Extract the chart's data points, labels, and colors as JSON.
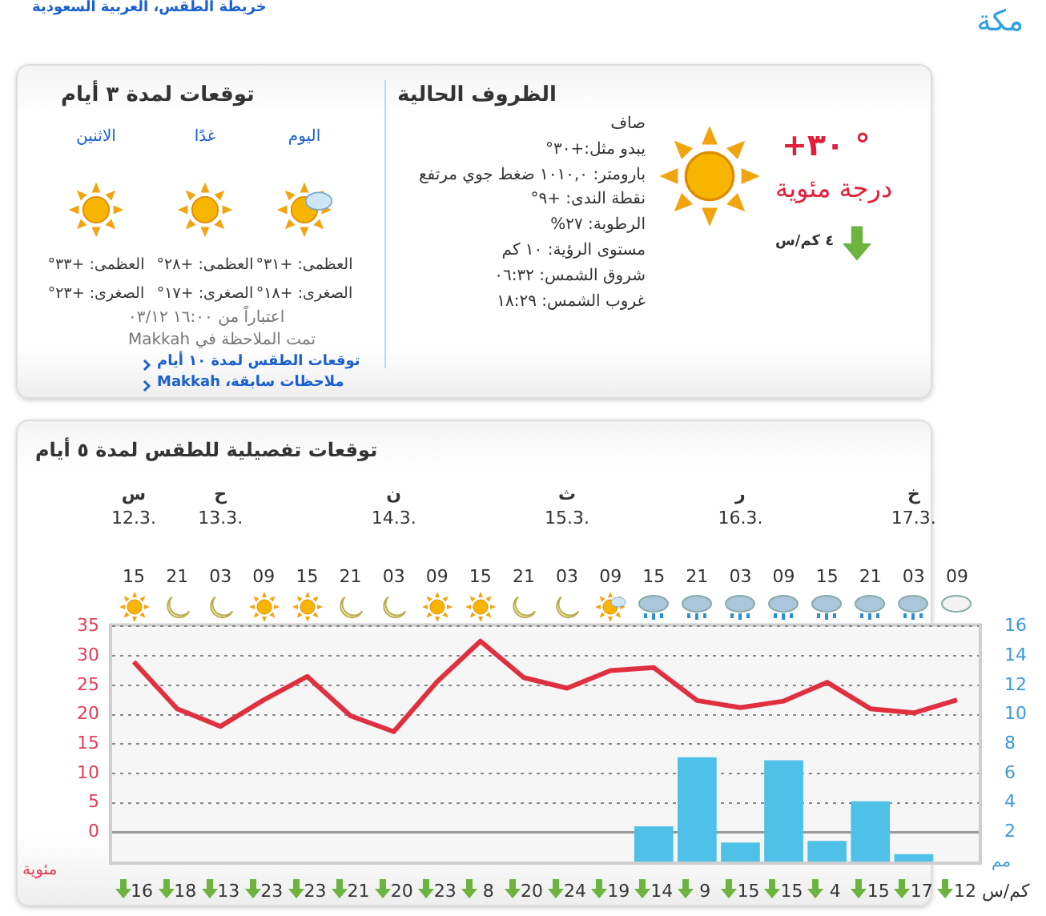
{
  "chart_data": [
    {
      "type": "other",
      "title": "الظروف الحالية",
      "annotations": [
        "مكة",
        "خريطة الطقس، العربية السعودية",
        "+٣٠ °",
        "درجة مئوية",
        "٤ كم/س",
        "صاف",
        "يبدو مثل:+٣٠°",
        "بارومتر: ١٠١٠,٠ ضغط جوي مرتفع",
        "نقطة الندى: +٩°",
        "الرطوبة: ٢٧%",
        "مستوى الرؤية: ١٠ كم",
        "شروق الشمس: ٠٦:٣٢",
        "غروب الشمس: ١٨:٢٩",
        "توقعات لمدة ٣ أيام",
        "اليوم",
        "غدًا",
        "الاثنين",
        "العظمى: +٣١°",
        "العظمى: +٢٨°",
        "العظمى: +٣٣°",
        "الصغرى: +١٨°",
        "الصغرى: +١٧°",
        "الصغرى: +٢٣°",
        "اعتباراً من ١٦:٠٠ ٠٣/١٢",
        "تمت الملاحظة في Makkah",
        "توقعات الطقس لمدة ١٠ أيام",
        "ملاحظات سابقة، Makkah"
      ]
    },
    {
      "type": "bar",
      "title": "توقعات تفصيلية للطقس لمدة ٥ أيام",
      "ylabel": "مئوية",
      "y2label": "مم",
      "categories": [
        "15",
        "21",
        "03",
        "09",
        "15",
        "21",
        "03",
        "09",
        "15",
        "21",
        "03",
        "09",
        "15",
        "21",
        "03",
        "09",
        "15",
        "21",
        "03",
        "09"
      ],
      "series": [
        {
          "type": "line",
          "color": "#e03040",
          "values": [
            29,
            21,
            18,
            22.5,
            26.5,
            19.8,
            17.1,
            25.6,
            32.5,
            26.3,
            24.5,
            27.5,
            28,
            22.4,
            21.2,
            22.3,
            25.5,
            21,
            20.3,
            22.5
          ]
        },
        {
          "type": "bar",
          "axis": "y2",
          "color": "#4fc1e9",
          "values": [
            null,
            null,
            null,
            null,
            null,
            null,
            null,
            null,
            null,
            null,
            null,
            null,
            2.4,
            7.1,
            1.3,
            6.9,
            1.4,
            4.1,
            0.5,
            null
          ]
        }
      ],
      "ylim": [
        -5,
        35
      ],
      "yticks": [
        0,
        5,
        10,
        15,
        20,
        25,
        30,
        35
      ],
      "y2lim": [
        0,
        16
      ],
      "y2ticks": [
        2,
        4,
        6,
        8,
        10,
        12,
        14,
        16
      ],
      "grid": "y",
      "annotations": [
        "س\n12.3.",
        "ح\n13.3.",
        "ن\n14.3.",
        "ث\n15.3.",
        "ر\n16.3.",
        "خ\n17.3.",
        "16",
        "18",
        "13",
        "23",
        "23",
        "21",
        "20",
        "23",
        "8",
        "20",
        "24",
        "19",
        "14",
        "9",
        "15",
        "15",
        "4",
        "15",
        "17",
        "12",
        "كم/س"
      ]
    }
  ]
}
